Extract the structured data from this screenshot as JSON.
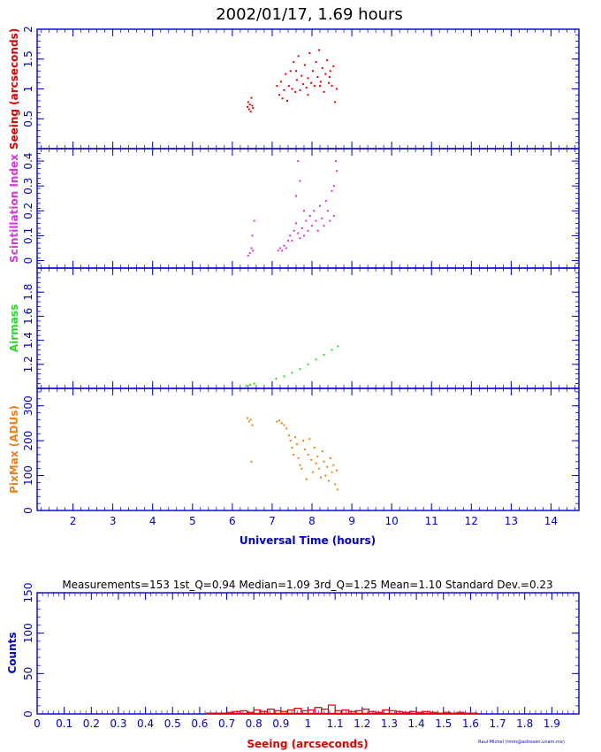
{
  "title": "2002/01/17, 1.69 hours",
  "colors": {
    "axis": "#0000c8",
    "seeing": "#e00000",
    "scint": "#e030e0",
    "airmass": "#20e020",
    "pixmax": "#f08010",
    "hist": "#e00000",
    "hist_box": "#0000c8"
  },
  "time_panels": {
    "xlabel": "Universal Time (hours)",
    "xlim": [
      1.1,
      14.7
    ],
    "xticks": [
      "2",
      "3",
      "4",
      "5",
      "6",
      "7",
      "8",
      "9",
      "10",
      "11",
      "12",
      "13",
      "14"
    ]
  },
  "histogram_panel": {
    "stats_text": "Measurements=153    1st_Q=0.94   Median=1.09   3rd_Q=1.25   Mean=1.10   Standard Dev.=0.23",
    "credit": "Raul Michel (rmm@astrosen.unam.mx)"
  },
  "chart_data": [
    {
      "type": "scatter",
      "ylabel": "Seeing (arcseconds)",
      "ylim": [
        0,
        2
      ],
      "yticks": [
        "0.5",
        "1",
        "1.5",
        "2"
      ],
      "xlim": [
        1.1,
        14.7
      ],
      "series": [
        {
          "values": [
            [
              6.38,
              0.7
            ],
            [
              6.4,
              0.78
            ],
            [
              6.42,
              0.66
            ],
            [
              6.44,
              0.74
            ],
            [
              6.46,
              0.62
            ],
            [
              6.48,
              0.85
            ],
            [
              6.5,
              0.72
            ],
            [
              6.52,
              0.68
            ],
            [
              7.12,
              1.05
            ],
            [
              7.18,
              0.9
            ],
            [
              7.22,
              1.12
            ],
            [
              7.26,
              0.84
            ],
            [
              7.3,
              0.98
            ],
            [
              7.34,
              1.25
            ],
            [
              7.38,
              0.8
            ],
            [
              7.42,
              1.05
            ],
            [
              7.46,
              1.3
            ],
            [
              7.5,
              1.0
            ],
            [
              7.54,
              1.45
            ],
            [
              7.58,
              0.95
            ],
            [
              7.62,
              1.15
            ],
            [
              7.66,
              1.55
            ],
            [
              7.7,
              0.98
            ],
            [
              7.74,
              1.22
            ],
            [
              7.78,
              1.08
            ],
            [
              7.82,
              1.4
            ],
            [
              7.86,
              1.02
            ],
            [
              7.9,
              1.18
            ],
            [
              7.94,
              1.6
            ],
            [
              7.98,
              1.1
            ],
            [
              8.02,
              1.3
            ],
            [
              8.06,
              1.05
            ],
            [
              8.1,
              1.45
            ],
            [
              8.14,
              1.2
            ],
            [
              8.18,
              1.65
            ],
            [
              8.22,
              1.12
            ],
            [
              8.26,
              1.35
            ],
            [
              8.3,
              0.95
            ],
            [
              8.34,
              1.25
            ],
            [
              8.38,
              1.48
            ],
            [
              8.42,
              1.1
            ],
            [
              8.46,
              1.3
            ],
            [
              8.5,
              1.05
            ],
            [
              8.54,
              1.38
            ],
            [
              8.58,
              0.78
            ],
            [
              8.62,
              1.0
            ],
            [
              7.6,
              1.3
            ],
            [
              7.9,
              0.9
            ],
            [
              8.2,
              1.05
            ],
            [
              8.44,
              1.2
            ]
          ]
        }
      ]
    },
    {
      "type": "scatter",
      "ylabel": "Scintillation Index",
      "ylim": [
        -0.03,
        0.45
      ],
      "yticks": [
        "0",
        "0.1",
        "0.2",
        "0.3",
        "0.4"
      ],
      "xlim": [
        1.1,
        14.7
      ],
      "series": [
        {
          "values": [
            [
              6.4,
              0.02
            ],
            [
              6.44,
              0.03
            ],
            [
              6.48,
              0.05
            ],
            [
              6.52,
              0.04
            ],
            [
              6.55,
              0.16
            ],
            [
              6.5,
              0.1
            ],
            [
              7.15,
              0.04
            ],
            [
              7.2,
              0.05
            ],
            [
              7.25,
              0.04
            ],
            [
              7.3,
              0.06
            ],
            [
              7.35,
              0.05
            ],
            [
              7.4,
              0.08
            ],
            [
              7.45,
              0.1
            ],
            [
              7.5,
              0.08
            ],
            [
              7.55,
              0.12
            ],
            [
              7.6,
              0.15
            ],
            [
              7.65,
              0.11
            ],
            [
              7.7,
              0.09
            ],
            [
              7.75,
              0.13
            ],
            [
              7.8,
              0.1
            ],
            [
              7.85,
              0.16
            ],
            [
              7.9,
              0.12
            ],
            [
              7.95,
              0.18
            ],
            [
              8.0,
              0.14
            ],
            [
              8.05,
              0.2
            ],
            [
              8.1,
              0.16
            ],
            [
              8.15,
              0.12
            ],
            [
              8.2,
              0.22
            ],
            [
              8.25,
              0.17
            ],
            [
              8.3,
              0.14
            ],
            [
              8.35,
              0.24
            ],
            [
              8.4,
              0.2
            ],
            [
              8.45,
              0.16
            ],
            [
              8.5,
              0.28
            ],
            [
              8.55,
              0.18
            ],
            [
              8.6,
              0.4
            ],
            [
              7.65,
              0.4
            ],
            [
              7.6,
              0.26
            ],
            [
              7.7,
              0.32
            ],
            [
              8.55,
              0.3
            ],
            [
              8.62,
              0.36
            ],
            [
              7.8,
              0.2
            ]
          ]
        }
      ]
    },
    {
      "type": "scatter",
      "ylabel": "Airmass",
      "ylim": [
        1.0,
        2.0
      ],
      "yticks": [
        "1.2",
        "1.4",
        "1.6",
        "1.8"
      ],
      "xlim": [
        1.1,
        14.7
      ],
      "series": [
        {
          "values": [
            [
              6.35,
              1.02
            ],
            [
              6.45,
              1.03
            ],
            [
              6.55,
              1.04
            ],
            [
              7.1,
              1.08
            ],
            [
              7.3,
              1.1
            ],
            [
              7.5,
              1.13
            ],
            [
              7.7,
              1.16
            ],
            [
              7.9,
              1.2
            ],
            [
              8.1,
              1.24
            ],
            [
              8.3,
              1.28
            ],
            [
              8.5,
              1.32
            ],
            [
              8.65,
              1.35
            ]
          ]
        }
      ]
    },
    {
      "type": "scatter",
      "ylabel": "PixMax (ADUs)",
      "ylim": [
        0,
        350
      ],
      "yticks": [
        "0",
        "100",
        "200",
        "300"
      ],
      "xlim": [
        1.1,
        14.7
      ],
      "series": [
        {
          "values": [
            [
              6.38,
              265
            ],
            [
              6.42,
              255
            ],
            [
              6.46,
              260
            ],
            [
              6.5,
              245
            ],
            [
              6.48,
              140
            ],
            [
              7.12,
              255
            ],
            [
              7.18,
              258
            ],
            [
              7.24,
              250
            ],
            [
              7.3,
              245
            ],
            [
              7.36,
              235
            ],
            [
              7.42,
              215
            ],
            [
              7.46,
              200
            ],
            [
              7.5,
              180
            ],
            [
              7.54,
              160
            ],
            [
              7.58,
              210
            ],
            [
              7.62,
              190
            ],
            [
              7.66,
              150
            ],
            [
              7.7,
              130
            ],
            [
              7.74,
              120
            ],
            [
              7.78,
              200
            ],
            [
              7.82,
              175
            ],
            [
              7.86,
              90
            ],
            [
              7.9,
              160
            ],
            [
              7.94,
              205
            ],
            [
              7.98,
              145
            ],
            [
              8.02,
              110
            ],
            [
              8.06,
              180
            ],
            [
              8.1,
              135
            ],
            [
              8.14,
              155
            ],
            [
              8.18,
              120
            ],
            [
              8.22,
              95
            ],
            [
              8.26,
              170
            ],
            [
              8.3,
              140
            ],
            [
              8.34,
              100
            ],
            [
              8.38,
              125
            ],
            [
              8.42,
              85
            ],
            [
              8.46,
              150
            ],
            [
              8.5,
              110
            ],
            [
              8.54,
              130
            ],
            [
              8.58,
              75
            ],
            [
              8.62,
              115
            ],
            [
              8.64,
              60
            ]
          ]
        }
      ]
    },
    {
      "type": "bar",
      "xlabel": "Seeing (arcseconds)",
      "ylabel": "Counts",
      "xlim": [
        0,
        2.0
      ],
      "ylim": [
        0,
        150
      ],
      "xticks": [
        "0",
        "0.1",
        "0.2",
        "0.3",
        "0.4",
        "0.5",
        "0.6",
        "0.7",
        "0.8",
        "0.9",
        "1",
        "1.1",
        "1.2",
        "1.3",
        "1.4",
        "1.5",
        "1.6",
        "1.7",
        "1.8",
        "1.9"
      ],
      "yticks": [
        "0",
        "50",
        "100",
        "150"
      ],
      "bin_width": 0.025,
      "bin_starts": [
        0.625,
        0.65,
        0.675,
        0.7,
        0.725,
        0.75,
        0.775,
        0.8,
        0.825,
        0.85,
        0.875,
        0.9,
        0.925,
        0.95,
        0.975,
        1.0,
        1.025,
        1.05,
        1.075,
        1.1,
        1.125,
        1.15,
        1.175,
        1.2,
        1.225,
        1.25,
        1.275,
        1.3,
        1.325,
        1.35,
        1.375,
        1.4,
        1.425,
        1.45,
        1.475,
        1.5,
        1.525,
        1.55,
        1.575,
        1.6
      ],
      "values": [
        1,
        1,
        1,
        2,
        3,
        4,
        2,
        5,
        3,
        6,
        4,
        3,
        5,
        7,
        4,
        5,
        8,
        6,
        11,
        4,
        5,
        3,
        4,
        6,
        3,
        2,
        5,
        4,
        3,
        2,
        3,
        2,
        3,
        2,
        1,
        2,
        1,
        2,
        1,
        1
      ]
    }
  ]
}
